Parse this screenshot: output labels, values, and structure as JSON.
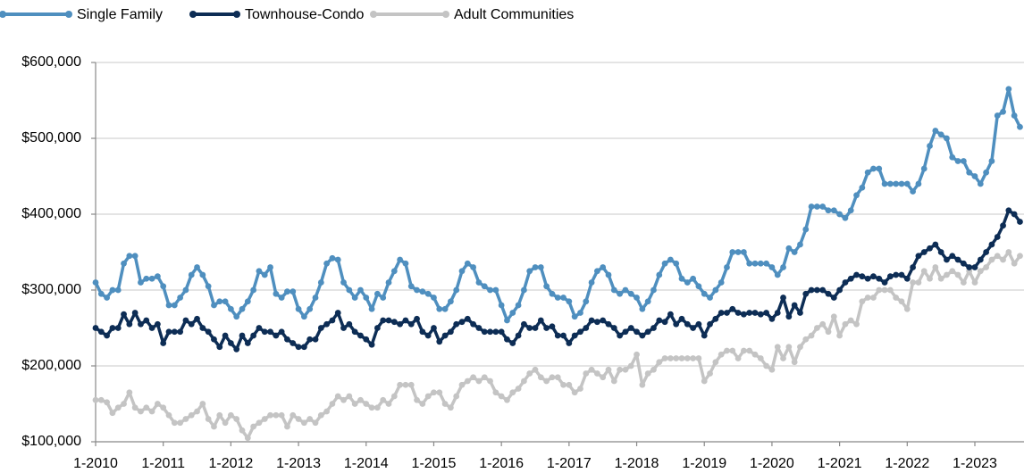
{
  "chart_data": {
    "type": "line",
    "categories": [
      "1-2010",
      null,
      null,
      null,
      null,
      null,
      null,
      null,
      null,
      null,
      null,
      null,
      "1-2011",
      null,
      null,
      null,
      null,
      null,
      null,
      null,
      null,
      null,
      null,
      null,
      "1-2012",
      null,
      null,
      null,
      null,
      null,
      null,
      null,
      null,
      null,
      null,
      null,
      "1-2013",
      null,
      null,
      null,
      null,
      null,
      null,
      null,
      null,
      null,
      null,
      null,
      "1-2014",
      null,
      null,
      null,
      null,
      null,
      null,
      null,
      null,
      null,
      null,
      null,
      "1-2015",
      null,
      null,
      null,
      null,
      null,
      null,
      null,
      null,
      null,
      null,
      null,
      "1-2016",
      null,
      null,
      null,
      null,
      null,
      null,
      null,
      null,
      null,
      null,
      null,
      "1-2017",
      null,
      null,
      null,
      null,
      null,
      null,
      null,
      null,
      null,
      null,
      null,
      "1-2018",
      null,
      null,
      null,
      null,
      null,
      null,
      null,
      null,
      null,
      null,
      null,
      "1-2019",
      null,
      null,
      null,
      null,
      null,
      null,
      null,
      null,
      null,
      null,
      null,
      "1-2020",
      null,
      null,
      null,
      null,
      null,
      null,
      null,
      null,
      null,
      null,
      null,
      "1-2021",
      null,
      null,
      null,
      null,
      null,
      null,
      null,
      null,
      null,
      null,
      null,
      "1-2022",
      null,
      null,
      null,
      null,
      null,
      null,
      null,
      null,
      null,
      null,
      null,
      "1-2023",
      null,
      null,
      null,
      null,
      null,
      null,
      null,
      null
    ],
    "series": [
      {
        "name": "Single Family",
        "color": "#4f8fbf",
        "values": [
          310000,
          295000,
          290000,
          300000,
          300000,
          335000,
          345000,
          345000,
          310000,
          315000,
          315000,
          318000,
          305000,
          280000,
          280000,
          290000,
          300000,
          320000,
          330000,
          320000,
          305000,
          280000,
          285000,
          285000,
          275000,
          265000,
          275000,
          285000,
          300000,
          325000,
          320000,
          330000,
          295000,
          290000,
          298000,
          298000,
          275000,
          265000,
          275000,
          290000,
          310000,
          335000,
          342000,
          340000,
          310000,
          300000,
          290000,
          300000,
          290000,
          275000,
          295000,
          290000,
          310000,
          325000,
          340000,
          335000,
          305000,
          300000,
          298000,
          295000,
          290000,
          275000,
          275000,
          285000,
          300000,
          325000,
          335000,
          330000,
          310000,
          305000,
          300000,
          300000,
          280000,
          260000,
          270000,
          280000,
          300000,
          325000,
          330000,
          330000,
          305000,
          295000,
          290000,
          290000,
          285000,
          265000,
          270000,
          285000,
          310000,
          325000,
          330000,
          320000,
          300000,
          295000,
          300000,
          295000,
          290000,
          275000,
          285000,
          300000,
          320000,
          335000,
          340000,
          335000,
          315000,
          310000,
          315000,
          305000,
          295000,
          290000,
          300000,
          310000,
          330000,
          350000,
          350000,
          350000,
          335000,
          335000,
          335000,
          335000,
          330000,
          320000,
          330000,
          355000,
          350000,
          360000,
          380000,
          410000,
          410000,
          410000,
          405000,
          405000,
          400000,
          395000,
          405000,
          425000,
          435000,
          455000,
          460000,
          460000,
          440000,
          440000,
          440000,
          440000,
          440000,
          430000,
          440000,
          460000,
          490000,
          510000,
          505000,
          500000,
          475000,
          470000,
          470000,
          455000,
          450000,
          440000,
          455000,
          470000,
          530000,
          535000,
          565000,
          530000,
          515000
        ]
      },
      {
        "name": "Townhouse-Condo",
        "color": "#0d2d55",
        "values": [
          250000,
          245000,
          240000,
          250000,
          250000,
          268000,
          255000,
          270000,
          255000,
          260000,
          250000,
          255000,
          230000,
          245000,
          245000,
          245000,
          260000,
          255000,
          262000,
          250000,
          245000,
          235000,
          225000,
          240000,
          230000,
          222000,
          240000,
          230000,
          240000,
          250000,
          245000,
          245000,
          240000,
          245000,
          235000,
          230000,
          225000,
          225000,
          235000,
          235000,
          250000,
          255000,
          260000,
          270000,
          250000,
          255000,
          245000,
          240000,
          235000,
          228000,
          250000,
          260000,
          260000,
          258000,
          255000,
          260000,
          255000,
          262000,
          245000,
          240000,
          250000,
          232000,
          240000,
          245000,
          255000,
          258000,
          262000,
          255000,
          250000,
          245000,
          245000,
          245000,
          245000,
          235000,
          230000,
          240000,
          255000,
          250000,
          250000,
          260000,
          250000,
          252000,
          240000,
          240000,
          230000,
          240000,
          245000,
          250000,
          260000,
          258000,
          260000,
          255000,
          250000,
          240000,
          245000,
          250000,
          245000,
          240000,
          245000,
          250000,
          260000,
          258000,
          268000,
          255000,
          262000,
          255000,
          250000,
          255000,
          240000,
          255000,
          262000,
          270000,
          270000,
          275000,
          270000,
          268000,
          270000,
          270000,
          268000,
          270000,
          262000,
          270000,
          290000,
          265000,
          280000,
          270000,
          295000,
          300000,
          300000,
          300000,
          295000,
          290000,
          300000,
          310000,
          315000,
          320000,
          318000,
          315000,
          318000,
          315000,
          310000,
          318000,
          320000,
          320000,
          315000,
          330000,
          345000,
          350000,
          355000,
          360000,
          350000,
          340000,
          345000,
          340000,
          335000,
          330000,
          330000,
          340000,
          350000,
          360000,
          370000,
          385000,
          405000,
          400000,
          390000
        ]
      },
      {
        "name": "Adult Communities",
        "color": "#c4c4c4",
        "values": [
          155000,
          155000,
          152000,
          138000,
          145000,
          150000,
          165000,
          145000,
          140000,
          145000,
          140000,
          150000,
          145000,
          135000,
          125000,
          125000,
          130000,
          135000,
          140000,
          150000,
          130000,
          120000,
          135000,
          125000,
          135000,
          130000,
          115000,
          105000,
          120000,
          125000,
          130000,
          135000,
          135000,
          135000,
          120000,
          135000,
          130000,
          125000,
          130000,
          125000,
          135000,
          140000,
          150000,
          160000,
          155000,
          160000,
          150000,
          155000,
          150000,
          145000,
          145000,
          155000,
          150000,
          160000,
          175000,
          175000,
          175000,
          155000,
          150000,
          160000,
          165000,
          165000,
          150000,
          145000,
          160000,
          175000,
          180000,
          185000,
          180000,
          185000,
          180000,
          165000,
          160000,
          155000,
          165000,
          170000,
          180000,
          190000,
          195000,
          185000,
          180000,
          185000,
          185000,
          175000,
          175000,
          165000,
          170000,
          190000,
          195000,
          190000,
          185000,
          195000,
          180000,
          195000,
          195000,
          200000,
          215000,
          175000,
          190000,
          195000,
          205000,
          210000,
          210000,
          210000,
          210000,
          210000,
          210000,
          210000,
          180000,
          190000,
          205000,
          215000,
          220000,
          220000,
          210000,
          220000,
          220000,
          215000,
          210000,
          200000,
          195000,
          225000,
          210000,
          225000,
          205000,
          225000,
          235000,
          240000,
          250000,
          255000,
          245000,
          265000,
          240000,
          255000,
          260000,
          255000,
          285000,
          290000,
          290000,
          300000,
          300000,
          300000,
          290000,
          285000,
          275000,
          310000,
          310000,
          325000,
          315000,
          330000,
          315000,
          320000,
          325000,
          320000,
          310000,
          325000,
          310000,
          325000,
          330000,
          340000,
          345000,
          340000,
          350000,
          335000,
          345000
        ]
      }
    ],
    "ylim": [
      100000,
      600000
    ],
    "yticks": [
      {
        "value": 100000,
        "label": "$100,000"
      },
      {
        "value": 200000,
        "label": "$200,000"
      },
      {
        "value": 300000,
        "label": "$300,000"
      },
      {
        "value": 400000,
        "label": "$400,000"
      },
      {
        "value": 500000,
        "label": "$500,000"
      },
      {
        "value": 600000,
        "label": "$600,000"
      }
    ],
    "grid": true,
    "legend": "top-left"
  }
}
